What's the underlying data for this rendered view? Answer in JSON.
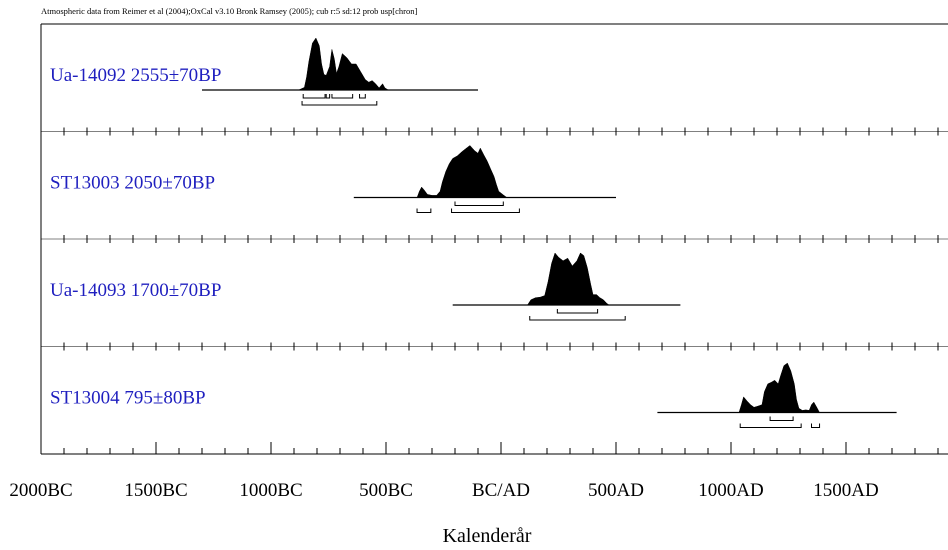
{
  "header": {
    "attribution": "Atmospheric data from Reimer et al (2004);OxCal v3.10 Bronk Ramsey (2005); cub r:5 sd:12 prob usp[chron]"
  },
  "colors": {
    "label": "#1f1fbf",
    "fill": "#000000",
    "axis": "#000000"
  },
  "chart_data": {
    "type": "area",
    "title": "",
    "xlabel": "Kalenderår",
    "ylabel": "",
    "xlim": [
      -2000,
      1900
    ],
    "x_ticks": [
      {
        "value": -2000,
        "label": "2000BC"
      },
      {
        "value": -1500,
        "label": "1500BC"
      },
      {
        "value": -1000,
        "label": "1000BC"
      },
      {
        "value": -500,
        "label": "500BC"
      },
      {
        "value": 0,
        "label": "BC/AD"
      },
      {
        "value": 500,
        "label": "500AD"
      },
      {
        "value": 1000,
        "label": "1000AD"
      },
      {
        "value": 1500,
        "label": "1500AD"
      }
    ],
    "minor_tick_step": 100,
    "series": [
      {
        "name": "Ua-14092 2555±70BP",
        "line_range": [
          -1300,
          -100
        ],
        "density": [
          [
            -880,
            0
          ],
          [
            -855,
            0.05
          ],
          [
            -845,
            0.25
          ],
          [
            -835,
            0.55
          ],
          [
            -820,
            0.9
          ],
          [
            -805,
            1.0
          ],
          [
            -790,
            0.85
          ],
          [
            -780,
            0.5
          ],
          [
            -770,
            0.3
          ],
          [
            -760,
            0.28
          ],
          [
            -745,
            0.45
          ],
          [
            -735,
            0.78
          ],
          [
            -725,
            0.6
          ],
          [
            -715,
            0.32
          ],
          [
            -705,
            0.45
          ],
          [
            -690,
            0.7
          ],
          [
            -670,
            0.62
          ],
          [
            -650,
            0.5
          ],
          [
            -630,
            0.5
          ],
          [
            -610,
            0.35
          ],
          [
            -590,
            0.2
          ],
          [
            -575,
            0.15
          ],
          [
            -560,
            0.18
          ],
          [
            -545,
            0.12
          ],
          [
            -530,
            0.04
          ],
          [
            -515,
            0.12
          ],
          [
            -505,
            0.04
          ],
          [
            -490,
            0
          ]
        ],
        "sigma1": [
          [
            -860,
            -765
          ],
          [
            -760,
            -745
          ],
          [
            -735,
            -645
          ],
          [
            -615,
            -590
          ]
        ],
        "sigma2": [
          [
            -865,
            -540
          ]
        ]
      },
      {
        "name": "ST13003 2050±70BP",
        "line_range": [
          -640,
          500
        ],
        "density": [
          [
            -365,
            0
          ],
          [
            -355,
            0.12
          ],
          [
            -345,
            0.2
          ],
          [
            -335,
            0.15
          ],
          [
            -320,
            0.06
          ],
          [
            -300,
            0.04
          ],
          [
            -280,
            0.04
          ],
          [
            -265,
            0.12
          ],
          [
            -255,
            0.3
          ],
          [
            -240,
            0.5
          ],
          [
            -225,
            0.65
          ],
          [
            -210,
            0.75
          ],
          [
            -190,
            0.8
          ],
          [
            -170,
            0.88
          ],
          [
            -150,
            0.95
          ],
          [
            -135,
            1.0
          ],
          [
            -115,
            0.9
          ],
          [
            -100,
            0.85
          ],
          [
            -90,
            0.95
          ],
          [
            -75,
            0.82
          ],
          [
            -60,
            0.7
          ],
          [
            -45,
            0.55
          ],
          [
            -30,
            0.4
          ],
          [
            -20,
            0.25
          ],
          [
            -10,
            0.12
          ],
          [
            10,
            0.05
          ],
          [
            25,
            0
          ]
        ],
        "sigma1": [
          [
            -200,
            10
          ]
        ],
        "sigma2": [
          [
            -365,
            -305
          ],
          [
            -215,
            80
          ]
        ]
      },
      {
        "name": "Ua-14093 1700±70BP",
        "line_range": [
          -210,
          780
        ],
        "density": [
          [
            115,
            0
          ],
          [
            130,
            0.1
          ],
          [
            150,
            0.14
          ],
          [
            170,
            0.15
          ],
          [
            190,
            0.18
          ],
          [
            205,
            0.45
          ],
          [
            220,
            0.8
          ],
          [
            235,
            1.0
          ],
          [
            250,
            0.92
          ],
          [
            270,
            0.85
          ],
          [
            290,
            0.9
          ],
          [
            310,
            0.75
          ],
          [
            330,
            0.85
          ],
          [
            345,
            1.0
          ],
          [
            360,
            0.95
          ],
          [
            375,
            0.72
          ],
          [
            390,
            0.4
          ],
          [
            400,
            0.2
          ],
          [
            415,
            0.2
          ],
          [
            430,
            0.14
          ],
          [
            445,
            0.1
          ],
          [
            460,
            0.03
          ],
          [
            470,
            0
          ]
        ],
        "sigma1": [
          [
            245,
            420
          ]
        ],
        "sigma2": [
          [
            125,
            540
          ]
        ]
      },
      {
        "name": "ST13004 795±80BP",
        "line_range": [
          680,
          1720
        ],
        "density": [
          [
            1035,
            0
          ],
          [
            1045,
            0.15
          ],
          [
            1055,
            0.3
          ],
          [
            1070,
            0.22
          ],
          [
            1085,
            0.15
          ],
          [
            1100,
            0.1
          ],
          [
            1115,
            0.12
          ],
          [
            1135,
            0.15
          ],
          [
            1145,
            0.4
          ],
          [
            1160,
            0.55
          ],
          [
            1175,
            0.58
          ],
          [
            1190,
            0.62
          ],
          [
            1205,
            0.55
          ],
          [
            1215,
            0.7
          ],
          [
            1230,
            0.9
          ],
          [
            1245,
            0.95
          ],
          [
            1260,
            0.8
          ],
          [
            1275,
            0.55
          ],
          [
            1285,
            0.25
          ],
          [
            1295,
            0.08
          ],
          [
            1310,
            0.04
          ],
          [
            1325,
            0.05
          ],
          [
            1340,
            0.04
          ],
          [
            1350,
            0.15
          ],
          [
            1360,
            0.2
          ],
          [
            1375,
            0.08
          ],
          [
            1385,
            0
          ]
        ],
        "sigma1": [
          [
            1170,
            1270
          ]
        ],
        "sigma2": [
          [
            1040,
            1305
          ],
          [
            1350,
            1385
          ]
        ]
      }
    ]
  }
}
